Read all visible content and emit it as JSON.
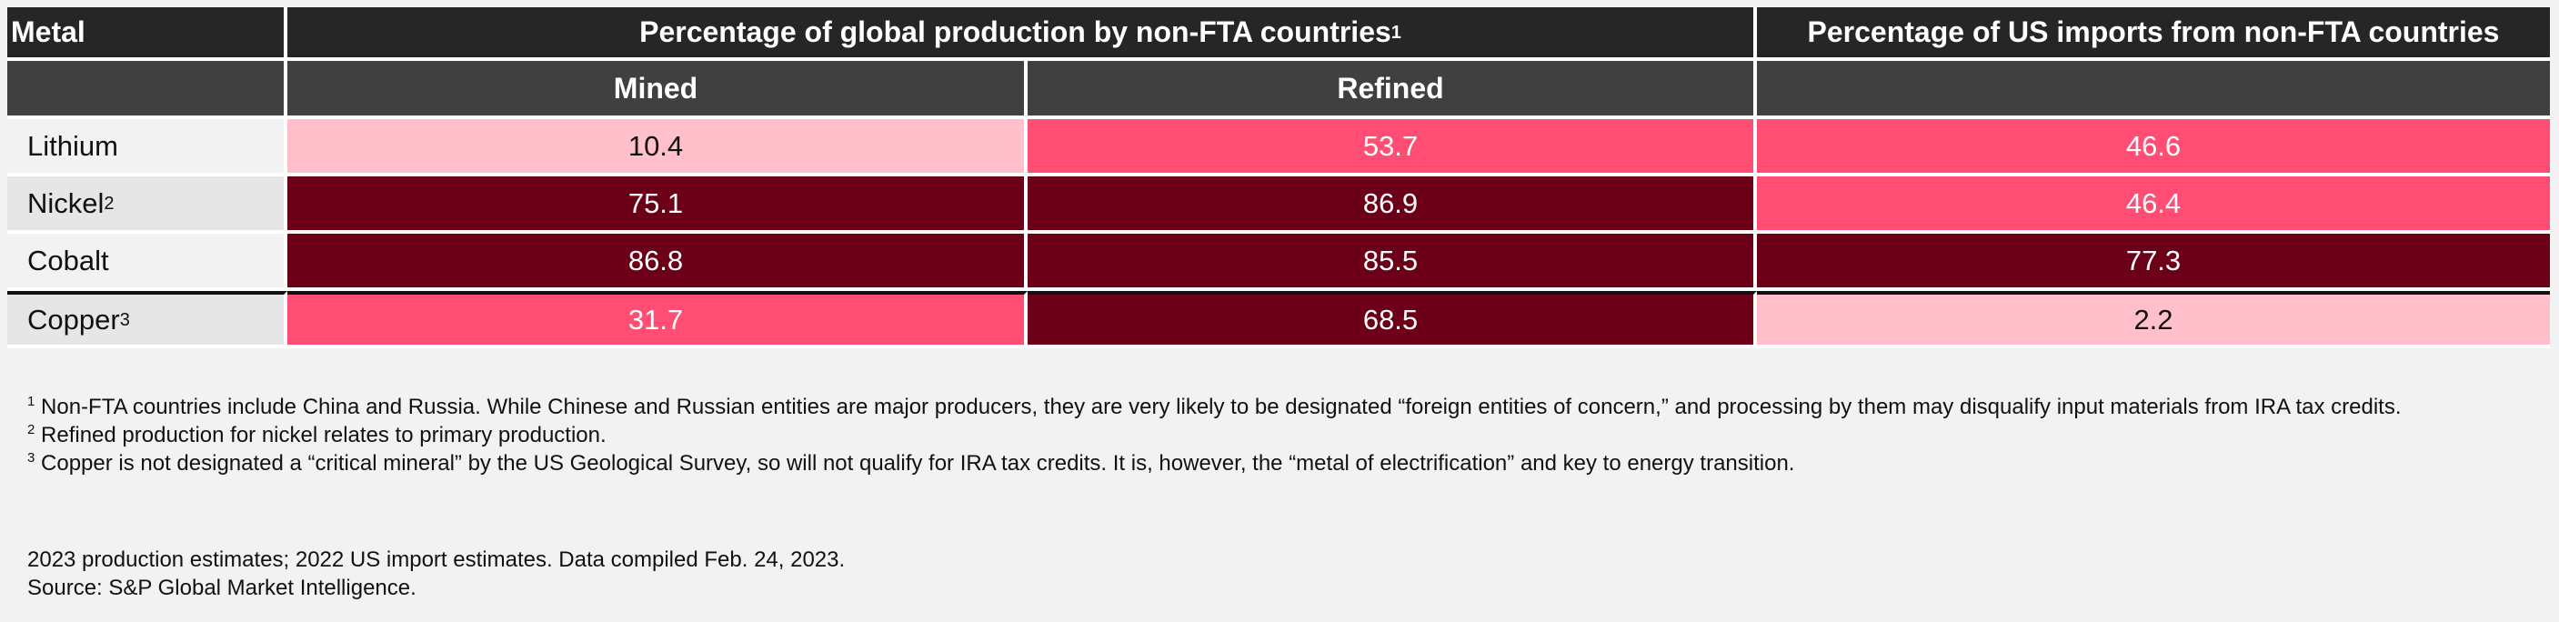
{
  "header": {
    "metal": "Metal",
    "global_production": "Percentage of global production by non-FTA countries",
    "global_production_note": "1",
    "us_imports": "Percentage of US imports from non-FTA countries",
    "mined": "Mined",
    "refined": "Refined"
  },
  "rows": [
    {
      "metal": "Lithium",
      "note": "",
      "mined": "10.4",
      "refined": "53.7",
      "imports": "46.6"
    },
    {
      "metal": "Nickel",
      "note": "2",
      "mined": "75.1",
      "refined": "86.9",
      "imports": "46.4"
    },
    {
      "metal": "Cobalt",
      "note": "",
      "mined": "86.8",
      "refined": "85.5",
      "imports": "77.3"
    },
    {
      "metal": "Copper",
      "note": "3",
      "mined": "31.7",
      "refined": "68.5",
      "imports": "2.2"
    }
  ],
  "colors": {
    "low": "#ffc0cb",
    "mid": "#ff4d73",
    "high": "#6b0018"
  },
  "footnotes": [
    {
      "mark": "1",
      "text": "Non-FTA countries include China and Russia. While Chinese and Russian entities are major producers, they are very likely to be designated “foreign entities of concern,” and processing by them may disqualify input materials from IRA tax credits."
    },
    {
      "mark": "2",
      "text": "Refined production for nickel relates to primary production."
    },
    {
      "mark": "3",
      "text": "Copper is not designated a “critical mineral” by the US Geological Survey, so will not qualify for IRA tax credits. It is, however, the “metal of electrification” and key to energy transition."
    }
  ],
  "estimates": "2023 production estimates; 2022 US import estimates. Data compiled Feb. 24, 2023.",
  "source": "Source: S&P Global Market Intelligence."
}
